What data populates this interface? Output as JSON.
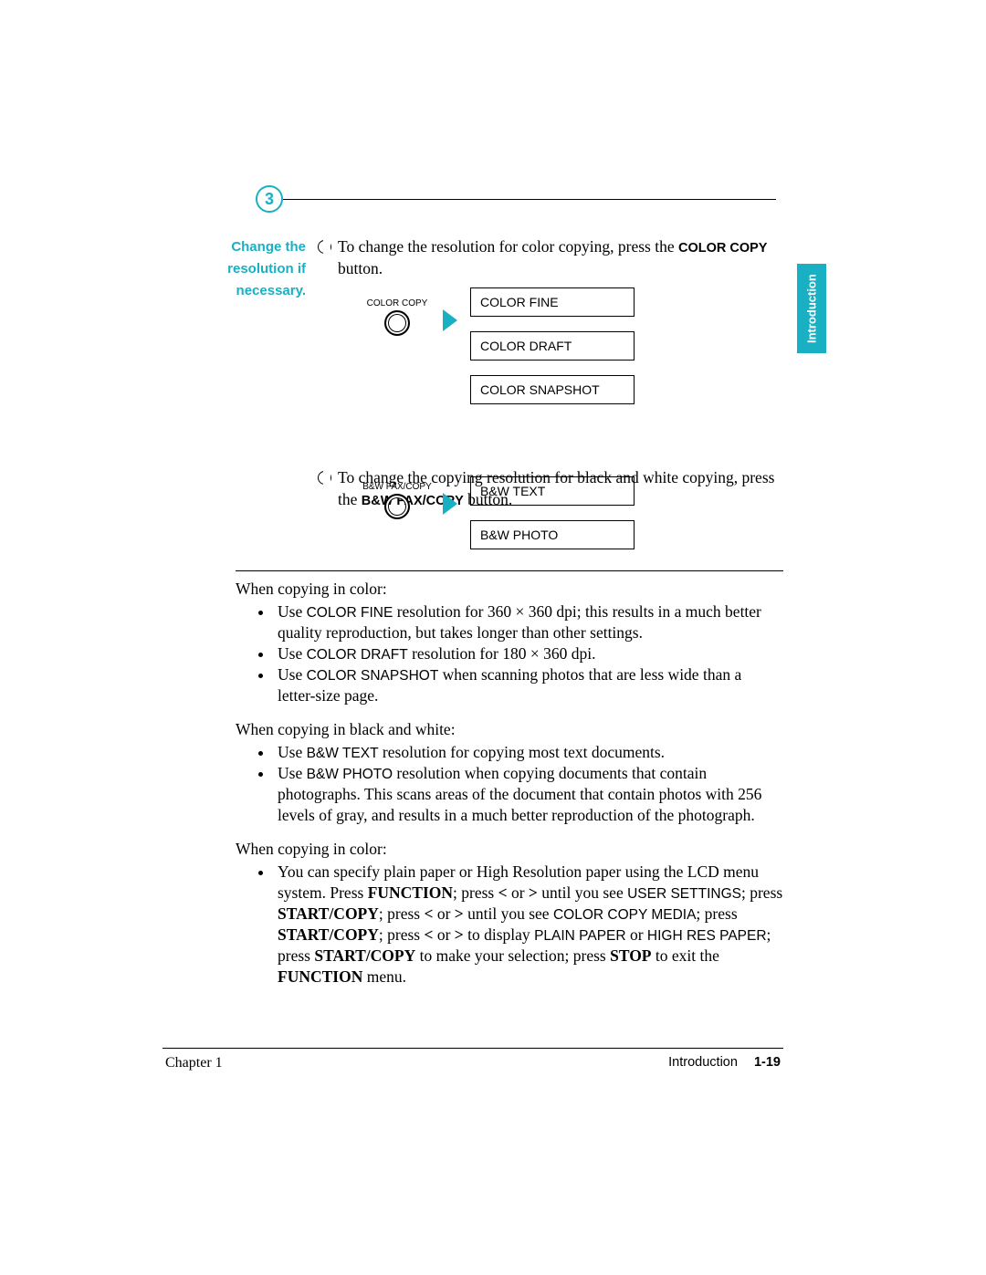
{
  "colors": {
    "accent": "#1ab0c4",
    "text": "#000000",
    "background": "#ffffff"
  },
  "sidetab": {
    "label": "Introduction"
  },
  "step": {
    "number": "3"
  },
  "heading": {
    "line1": "Change the",
    "line2": "resolution if",
    "line3": "necessary."
  },
  "bullet1": {
    "pre": "To change the resolution for color copying, press the ",
    "btn": "COLOR COPY",
    "post": " button."
  },
  "diagram1": {
    "btn_label": "COLOR COPY",
    "options": [
      "COLOR FINE",
      "COLOR DRAFT",
      "COLOR SNAPSHOT"
    ]
  },
  "bullet2": {
    "pre": "To change the copying resolution for black and white copying, press the ",
    "btn": "B&W FAX/COPY",
    "post": " button."
  },
  "diagram2": {
    "btn_label": "B&W FAX/COPY",
    "options": [
      "B&W TEXT",
      "B&W PHOTO"
    ]
  },
  "section_color": {
    "lead": "When copying in color:",
    "items": [
      {
        "pre": "Use ",
        "code": "COLOR FINE",
        "post": " resolution for 360 × 360 dpi; this results in a much better quality reproduction, but takes longer than other settings."
      },
      {
        "pre": "Use ",
        "code": "COLOR DRAFT",
        "post": " resolution for 180 × 360 dpi."
      },
      {
        "pre": "Use ",
        "code": "COLOR SNAPSHOT",
        "post": " when scanning photos that are less wide than a letter-size page."
      }
    ]
  },
  "section_bw": {
    "lead": "When copying in black and white:",
    "items": [
      {
        "pre": "Use ",
        "code": "B&W TEXT",
        "post": " resolution for copying most text documents."
      },
      {
        "pre": "Use ",
        "code": "B&W PHOTO",
        "post": " resolution when copying documents that contain photographs. This scans areas of the document that contain photos with 256 levels of gray, and results in a much better reproduction of the photograph."
      }
    ]
  },
  "section_paper": {
    "lead": "When copying in color:",
    "item_html_parts": [
      "You can specify plain paper or High Resolution paper using the LCD menu system. Press ",
      "FUNCTION",
      "; press ",
      "<",
      " or ",
      ">",
      " until you see ",
      "USER SETTINGS",
      "; press ",
      "START/COPY",
      "; press ",
      "<",
      " or ",
      ">",
      " until you see ",
      "COLOR COPY MEDIA",
      "; press ",
      "START/COPY",
      "; press ",
      "<",
      " or ",
      ">",
      " to display ",
      "PLAIN PAPER",
      " or ",
      "HIGH RES PAPER",
      "; press ",
      "START/COPY",
      " to make your selection; press ",
      "STOP",
      " to exit the ",
      "FUNCTION",
      " menu."
    ]
  },
  "footer": {
    "left": "Chapter 1",
    "right_label": "Introduction",
    "page": "1-19"
  }
}
